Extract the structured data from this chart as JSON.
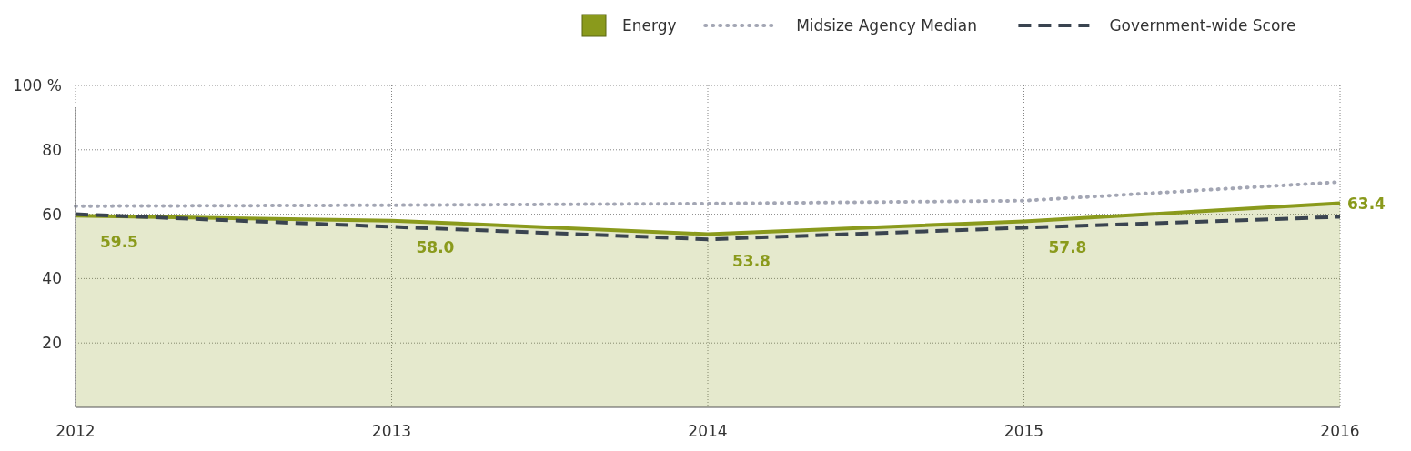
{
  "chart_data": {
    "type": "line",
    "x": [
      2012,
      2013,
      2014,
      2015,
      2016
    ],
    "xlim": [
      2012,
      2016
    ],
    "xticks": [
      2012,
      2013,
      2014,
      2015,
      2016
    ],
    "ylim": [
      0,
      100
    ],
    "yticks": [
      20,
      40,
      60,
      {
        "value": 80,
        "label": "80"
      },
      {
        "value": 100,
        "label": "100 %"
      }
    ],
    "grid": true,
    "legend": "top right",
    "marker": "none",
    "series": [
      {
        "name": "Energy",
        "type": "area",
        "color": "#8a9a1c",
        "values": [
          59.5,
          58.0,
          53.8,
          57.8,
          63.4
        ],
        "value_labels": [
          "59.5",
          "58.0",
          "53.8",
          "57.8",
          "63.4"
        ],
        "line_style": "solid"
      },
      {
        "name": "Midsize Agency Median",
        "color": "#a3a6b4",
        "values": [
          62.5,
          62.8,
          63.3,
          64.2,
          70.0
        ],
        "line_style": "dotted"
      },
      {
        "name": "Government-wide Score",
        "color": "#3a4450",
        "values": [
          60.0,
          56.1,
          52.2,
          55.8,
          59.2
        ],
        "line_style": "dashed"
      }
    ]
  }
}
